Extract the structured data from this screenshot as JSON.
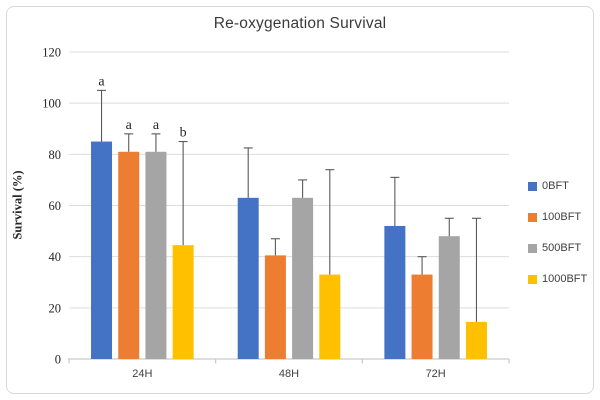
{
  "frame": {
    "background": "#ffffff",
    "border_color": "#d9d9d9"
  },
  "chart_data": {
    "type": "bar",
    "title": "Re-oxygenation Survival",
    "ylabel": "Survival (%)",
    "xlabel": "",
    "ylim": [
      0,
      120
    ],
    "yticks": [
      0,
      20,
      40,
      60,
      80,
      100,
      120
    ],
    "categories": [
      "24H",
      "48H",
      "72H"
    ],
    "series": [
      {
        "name": "0BFT",
        "color": "#4472C4",
        "values": [
          85,
          63,
          52
        ],
        "error_plus": [
          20,
          19.5,
          19
        ]
      },
      {
        "name": "100BFT",
        "color": "#ED7D31",
        "values": [
          81,
          40.5,
          33
        ],
        "error_plus": [
          7,
          6.5,
          7
        ]
      },
      {
        "name": "500BFT",
        "color": "#A5A5A5",
        "values": [
          81,
          63,
          48
        ],
        "error_plus": [
          7,
          7,
          7
        ]
      },
      {
        "name": "1000BFT",
        "color": "#FFC000",
        "values": [
          44.5,
          33,
          14.5
        ],
        "error_plus": [
          40.5,
          41,
          40.5
        ]
      }
    ],
    "annotations": [
      {
        "category": "24H",
        "labels_per_series": [
          "a",
          "a",
          "a",
          "b"
        ]
      }
    ],
    "legend_position": "right",
    "grid": true,
    "gridline_color": "#dddddd",
    "axis_color": "#c9c9c9",
    "error_bar_color": "#595959",
    "text_color": "#404040"
  }
}
